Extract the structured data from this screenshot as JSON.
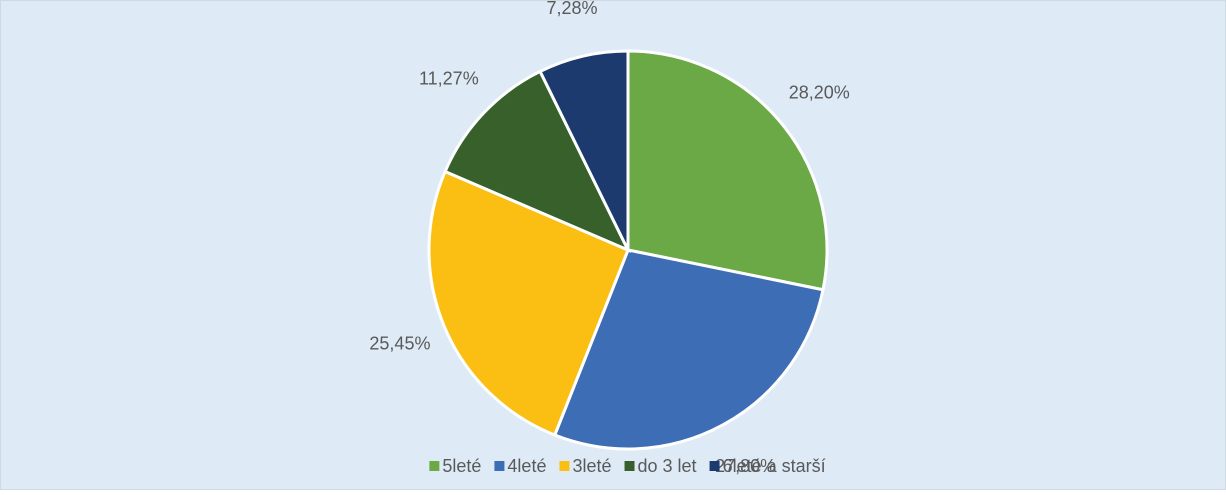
{
  "chart_data": {
    "type": "pie",
    "categories": [
      "5leté",
      "4leté",
      "3leté",
      "do 3 let",
      "6leté a starší"
    ],
    "values": [
      28.2,
      27.8,
      25.45,
      11.27,
      7.28
    ],
    "value_labels": [
      "28,20%",
      "27,80%",
      "25,45%",
      "11,27%",
      "7,28%"
    ],
    "colors": [
      "#6aa945",
      "#3d6db5",
      "#fbbf14",
      "#37602b",
      "#1c3a6e"
    ],
    "legend": "bottom"
  }
}
